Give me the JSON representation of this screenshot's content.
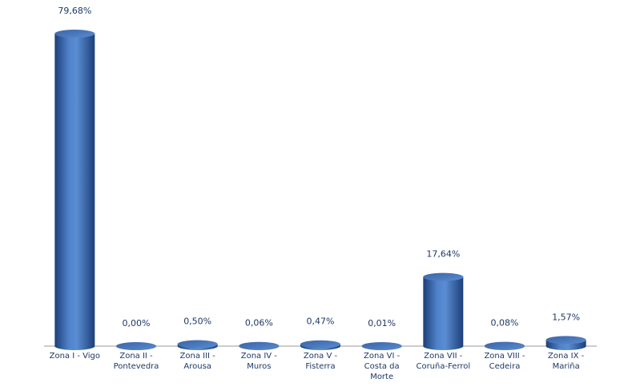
{
  "chart_data": {
    "type": "bar",
    "categories": [
      "Zona I - Vigo",
      "Zona II - Pontevedra",
      "Zona III - Arousa",
      "Zona IV - Muros",
      "Zona V - Fisterra",
      "Zona VI - Costa da Morte",
      "Zona VII - Coruña-Ferrol",
      "Zona VIII - Cedeira",
      "Zona IX - Mariña"
    ],
    "values": [
      79.68,
      0,
      0.5,
      0.06,
      0.47,
      0.01,
      17.64,
      0.08,
      1.57
    ],
    "value_labels": [
      "79,68%",
      "0,00%",
      "0,50%",
      "0,06%",
      "0,47%",
      "0,01%",
      "17,64%",
      "0,08%",
      "1,57%"
    ],
    "color": "#3c6db3"
  }
}
